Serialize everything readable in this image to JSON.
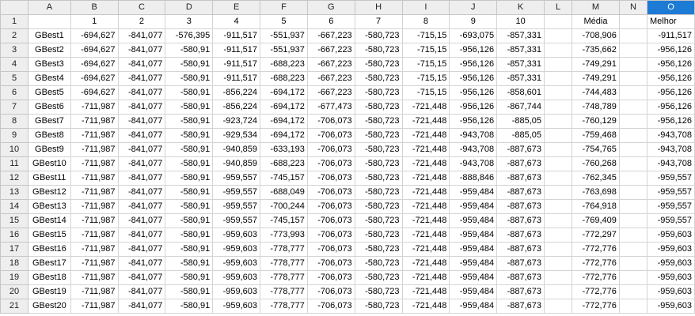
{
  "column_headers": [
    "A",
    "B",
    "C",
    "D",
    "E",
    "F",
    "G",
    "H",
    "I",
    "J",
    "K",
    "L",
    "M",
    "N",
    "O"
  ],
  "selected_column": "O",
  "row_numbers": [
    1,
    2,
    3,
    4,
    5,
    6,
    7,
    8,
    9,
    10,
    11,
    12,
    13,
    14,
    15,
    16,
    17,
    18,
    19,
    20,
    21
  ],
  "header_row": {
    "iterations": [
      "1",
      "2",
      "3",
      "4",
      "5",
      "6",
      "7",
      "8",
      "9",
      "10"
    ],
    "media_label": "Média",
    "melhor_label": "Melhor"
  },
  "rows": [
    {
      "label": "GBest1",
      "values": [
        "-694,627",
        "-841,077",
        "-576,395",
        "-911,517",
        "-551,937",
        "-667,223",
        "-580,723",
        "-715,15",
        "-693,075",
        "-857,331"
      ],
      "media": "-708,906",
      "melhor": "-911,517"
    },
    {
      "label": "GBest2",
      "values": [
        "-694,627",
        "-841,077",
        "-580,91",
        "-911,517",
        "-551,937",
        "-667,223",
        "-580,723",
        "-715,15",
        "-956,126",
        "-857,331"
      ],
      "media": "-735,662",
      "melhor": "-956,126"
    },
    {
      "label": "GBest3",
      "values": [
        "-694,627",
        "-841,077",
        "-580,91",
        "-911,517",
        "-688,223",
        "-667,223",
        "-580,723",
        "-715,15",
        "-956,126",
        "-857,331"
      ],
      "media": "-749,291",
      "melhor": "-956,126"
    },
    {
      "label": "GBest4",
      "values": [
        "-694,627",
        "-841,077",
        "-580,91",
        "-911,517",
        "-688,223",
        "-667,223",
        "-580,723",
        "-715,15",
        "-956,126",
        "-857,331"
      ],
      "media": "-749,291",
      "melhor": "-956,126"
    },
    {
      "label": "GBest5",
      "values": [
        "-694,627",
        "-841,077",
        "-580,91",
        "-856,224",
        "-694,172",
        "-667,223",
        "-580,723",
        "-715,15",
        "-956,126",
        "-858,601"
      ],
      "media": "-744,483",
      "melhor": "-956,126"
    },
    {
      "label": "GBest6",
      "values": [
        "-711,987",
        "-841,077",
        "-580,91",
        "-856,224",
        "-694,172",
        "-677,473",
        "-580,723",
        "-721,448",
        "-956,126",
        "-867,744"
      ],
      "media": "-748,789",
      "melhor": "-956,126"
    },
    {
      "label": "GBest7",
      "values": [
        "-711,987",
        "-841,077",
        "-580,91",
        "-923,724",
        "-694,172",
        "-706,073",
        "-580,723",
        "-721,448",
        "-956,126",
        "-885,05"
      ],
      "media": "-760,129",
      "melhor": "-956,126"
    },
    {
      "label": "GBest8",
      "values": [
        "-711,987",
        "-841,077",
        "-580,91",
        "-929,534",
        "-694,172",
        "-706,073",
        "-580,723",
        "-721,448",
        "-943,708",
        "-885,05"
      ],
      "media": "-759,468",
      "melhor": "-943,708"
    },
    {
      "label": "GBest9",
      "values": [
        "-711,987",
        "-841,077",
        "-580,91",
        "-940,859",
        "-633,193",
        "-706,073",
        "-580,723",
        "-721,448",
        "-943,708",
        "-887,673"
      ],
      "media": "-754,765",
      "melhor": "-943,708"
    },
    {
      "label": "GBest10",
      "values": [
        "-711,987",
        "-841,077",
        "-580,91",
        "-940,859",
        "-688,223",
        "-706,073",
        "-580,723",
        "-721,448",
        "-943,708",
        "-887,673"
      ],
      "media": "-760,268",
      "melhor": "-943,708"
    },
    {
      "label": "GBest11",
      "values": [
        "-711,987",
        "-841,077",
        "-580,91",
        "-959,557",
        "-745,157",
        "-706,073",
        "-580,723",
        "-721,448",
        "-888,846",
        "-887,673"
      ],
      "media": "-762,345",
      "melhor": "-959,557"
    },
    {
      "label": "GBest12",
      "values": [
        "-711,987",
        "-841,077",
        "-580,91",
        "-959,557",
        "-688,049",
        "-706,073",
        "-580,723",
        "-721,448",
        "-959,484",
        "-887,673"
      ],
      "media": "-763,698",
      "melhor": "-959,557"
    },
    {
      "label": "GBest13",
      "values": [
        "-711,987",
        "-841,077",
        "-580,91",
        "-959,557",
        "-700,244",
        "-706,073",
        "-580,723",
        "-721,448",
        "-959,484",
        "-887,673"
      ],
      "media": "-764,918",
      "melhor": "-959,557"
    },
    {
      "label": "GBest14",
      "values": [
        "-711,987",
        "-841,077",
        "-580,91",
        "-959,557",
        "-745,157",
        "-706,073",
        "-580,723",
        "-721,448",
        "-959,484",
        "-887,673"
      ],
      "media": "-769,409",
      "melhor": "-959,557"
    },
    {
      "label": "GBest15",
      "values": [
        "-711,987",
        "-841,077",
        "-580,91",
        "-959,603",
        "-773,993",
        "-706,073",
        "-580,723",
        "-721,448",
        "-959,484",
        "-887,673"
      ],
      "media": "-772,297",
      "melhor": "-959,603"
    },
    {
      "label": "GBest16",
      "values": [
        "-711,987",
        "-841,077",
        "-580,91",
        "-959,603",
        "-778,777",
        "-706,073",
        "-580,723",
        "-721,448",
        "-959,484",
        "-887,673"
      ],
      "media": "-772,776",
      "melhor": "-959,603"
    },
    {
      "label": "GBest17",
      "values": [
        "-711,987",
        "-841,077",
        "-580,91",
        "-959,603",
        "-778,777",
        "-706,073",
        "-580,723",
        "-721,448",
        "-959,484",
        "-887,673"
      ],
      "media": "-772,776",
      "melhor": "-959,603"
    },
    {
      "label": "GBest18",
      "values": [
        "-711,987",
        "-841,077",
        "-580,91",
        "-959,603",
        "-778,777",
        "-706,073",
        "-580,723",
        "-721,448",
        "-959,484",
        "-887,673"
      ],
      "media": "-772,776",
      "melhor": "-959,603"
    },
    {
      "label": "GBest19",
      "values": [
        "-711,987",
        "-841,077",
        "-580,91",
        "-959,603",
        "-778,777",
        "-706,073",
        "-580,723",
        "-721,448",
        "-959,484",
        "-887,673"
      ],
      "media": "-772,776",
      "melhor": "-959,603"
    },
    {
      "label": "GBest20",
      "values": [
        "-711,987",
        "-841,077",
        "-580,91",
        "-959,603",
        "-778,777",
        "-706,073",
        "-580,723",
        "-721,448",
        "-959,484",
        "-887,673"
      ],
      "media": "-772,776",
      "melhor": "-959,603"
    }
  ],
  "colors": {
    "selected_header": "#1d7bd6",
    "header_bg": "#eeeeee",
    "grid": "#d4d4d4"
  }
}
